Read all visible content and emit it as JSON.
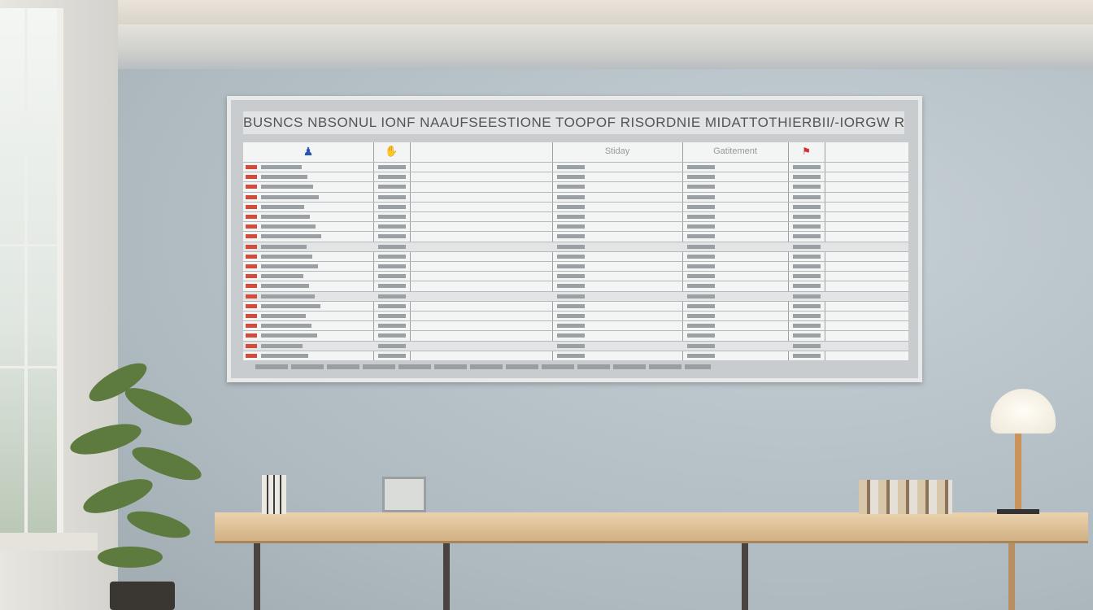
{
  "board": {
    "title": "BUSNCS NBSONUL IONF NAAUFSEESTIONE TOOPOF RISORDNIE MIDATTOTHIERBII/-IORGW RIATODS",
    "headers": [
      "",
      "",
      "",
      "Stiday",
      "Gatitement",
      "",
      ""
    ],
    "header_icons": [
      "blue-figure-icon",
      "hand-icon",
      "",
      "",
      "",
      "red-pin-icon",
      ""
    ],
    "row_count": 20,
    "accent": "#d24b3b"
  }
}
